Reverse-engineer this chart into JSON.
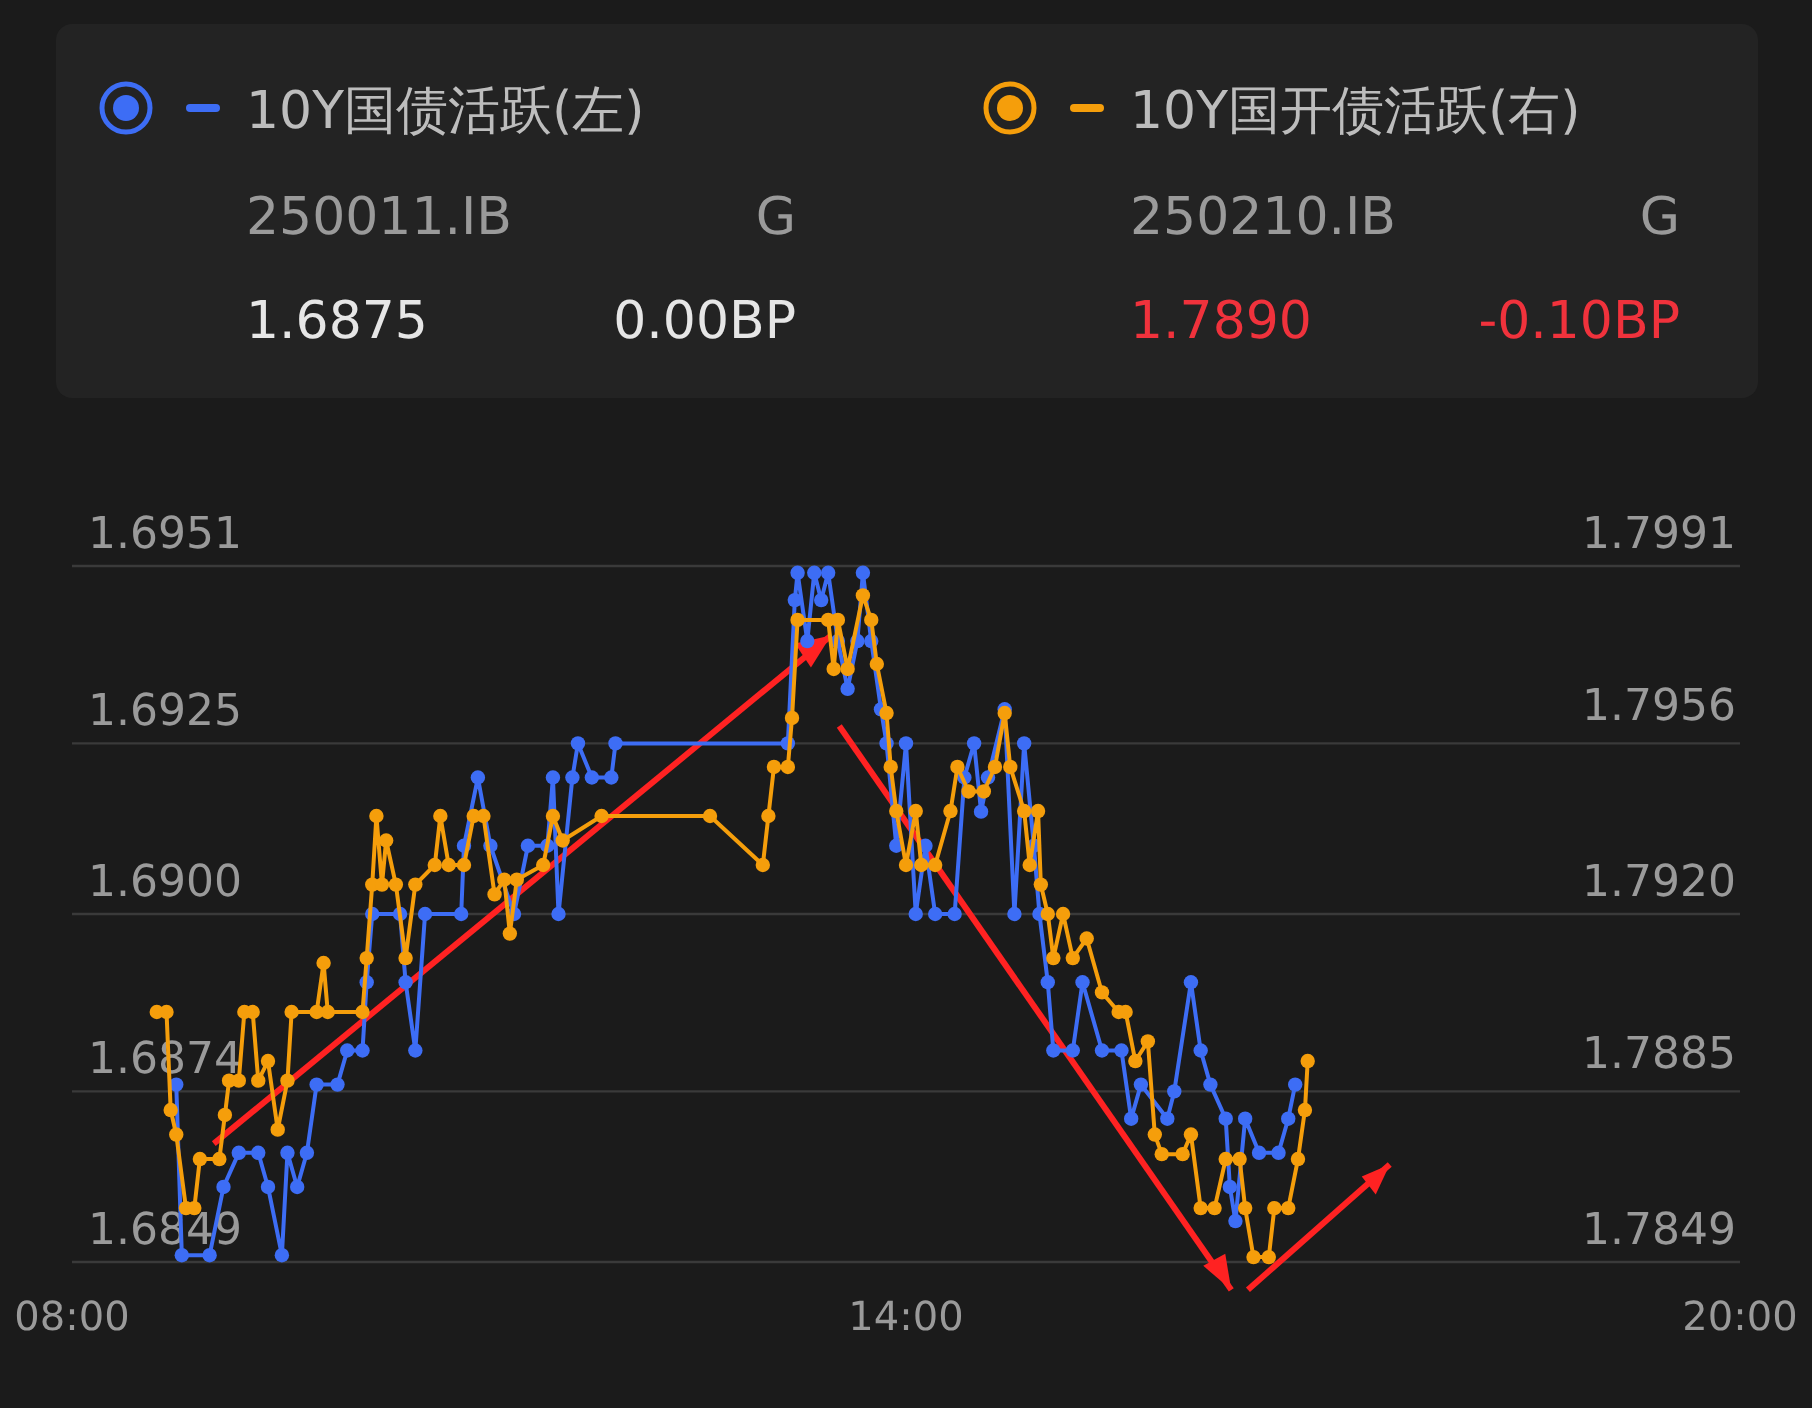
{
  "chart_data": {
    "type": "line",
    "legend": "top",
    "marker": "circle",
    "line_style": "solid",
    "grid": "y",
    "xlim": [
      8,
      20
    ],
    "xticks": [
      {
        "value": 8,
        "label": "08:00"
      },
      {
        "value": 14,
        "label": "14:00"
      },
      {
        "value": 20,
        "label": "20:00"
      }
    ],
    "ylim": [
      1.6849,
      1.6951
    ],
    "yticks": [
      1.6849,
      1.6874,
      {
        "value": 1.69,
        "label": "1.6900"
      },
      1.6925,
      1.6951
    ],
    "y2lim": [
      1.7849,
      1.7991
    ],
    "y2ticks": [
      1.7849,
      1.7885,
      {
        "value": 1.792,
        "label": "1.7920"
      },
      1.7956,
      1.7991
    ],
    "annotations": [
      "250011.IB",
      "G",
      "1.6875",
      "0.00BP",
      "250210.IB",
      "G",
      "1.7890",
      "-0.10BP"
    ],
    "series": [
      {
        "name": "10Y国债活跃(左)",
        "color": "#3d6df5",
        "x": [
          8.75,
          8.79,
          8.99,
          9.09,
          9.2,
          9.34,
          9.41,
          9.51,
          9.55,
          9.62,
          9.69,
          9.76,
          9.91,
          9.98,
          10.09,
          10.12,
          10.16,
          10.36,
          10.4,
          10.47,
          10.54,
          10.8,
          10.82,
          10.92,
          11.01,
          11.18,
          11.28,
          11.42,
          11.46,
          11.5,
          11.6,
          11.64,
          11.74,
          11.88,
          11.91,
          13.15,
          13.2,
          13.22,
          13.29,
          13.34,
          13.39,
          13.44,
          13.51,
          13.58,
          13.65,
          13.69,
          13.75,
          13.82,
          13.86,
          13.93,
          14,
          14.07,
          14.14,
          14.21,
          14.35,
          14.42,
          14.49,
          14.54,
          14.59,
          14.71,
          14.78,
          14.85,
          14.92,
          14.96,
          15.02,
          15.06,
          15.2,
          15.27,
          15.41,
          15.55,
          15.62,
          15.69,
          15.88,
          15.93,
          16.05,
          16.12,
          16.19,
          16.3,
          16.33,
          16.37,
          16.44,
          16.54,
          16.68,
          16.75,
          16.8
        ],
        "values": [
          1.6875,
          1.685,
          1.685,
          1.686,
          1.6865,
          1.6865,
          1.686,
          1.685,
          1.6865,
          1.686,
          1.6865,
          1.6875,
          1.6875,
          1.688,
          1.688,
          1.689,
          1.69,
          1.69,
          1.689,
          1.688,
          1.69,
          1.69,
          1.691,
          1.692,
          1.691,
          1.69,
          1.691,
          1.691,
          1.692,
          1.69,
          1.692,
          1.6925,
          1.692,
          1.692,
          1.6925,
          1.6925,
          1.6946,
          1.695,
          1.694,
          1.695,
          1.6946,
          1.695,
          1.694,
          1.6933,
          1.694,
          1.695,
          1.694,
          1.693,
          1.6925,
          1.691,
          1.6925,
          1.69,
          1.691,
          1.69,
          1.69,
          1.692,
          1.6925,
          1.6915,
          1.692,
          1.693,
          1.69,
          1.6925,
          1.691,
          1.69,
          1.689,
          1.688,
          1.688,
          1.689,
          1.688,
          1.688,
          1.687,
          1.6875,
          1.687,
          1.6874,
          1.689,
          1.688,
          1.6875,
          1.687,
          1.686,
          1.6855,
          1.687,
          1.6865,
          1.6865,
          1.687,
          1.6875
        ]
      },
      {
        "name": "10Y国开债活跃(右)",
        "color": "#f59e0b",
        "axis": "y2",
        "x": [
          8.61,
          8.68,
          8.71,
          8.75,
          8.82,
          8.88,
          8.92,
          9.06,
          9.1,
          9.13,
          9.2,
          9.24,
          9.3,
          9.34,
          9.41,
          9.48,
          9.55,
          9.58,
          9.76,
          9.81,
          9.84,
          10.09,
          10.12,
          10.16,
          10.19,
          10.23,
          10.26,
          10.33,
          10.4,
          10.47,
          10.61,
          10.65,
          10.71,
          10.82,
          10.89,
          10.96,
          11.04,
          11.11,
          11.15,
          11.2,
          11.39,
          11.46,
          11.53,
          11.81,
          12.59,
          12.97,
          13.01,
          13.05,
          13.15,
          13.18,
          13.22,
          13.44,
          13.48,
          13.51,
          13.58,
          13.69,
          13.75,
          13.79,
          13.86,
          13.89,
          13.93,
          14,
          14.07,
          14.11,
          14.21,
          14.32,
          14.37,
          14.45,
          14.56,
          14.64,
          14.71,
          14.75,
          14.85,
          14.89,
          14.95,
          14.97,
          15.02,
          15.06,
          15.13,
          15.2,
          15.3,
          15.41,
          15.53,
          15.58,
          15.65,
          15.74,
          15.79,
          15.84,
          15.99,
          16.05,
          16.12,
          16.22,
          16.3,
          16.4,
          16.44,
          16.5,
          16.61,
          16.65,
          16.75,
          16.82,
          16.87,
          16.89
        ],
        "values": [
          1.79,
          1.79,
          1.788,
          1.7875,
          1.786,
          1.786,
          1.787,
          1.787,
          1.7879,
          1.7886,
          1.7886,
          1.79,
          1.79,
          1.7886,
          1.789,
          1.7876,
          1.7886,
          1.79,
          1.79,
          1.791,
          1.79,
          1.79,
          1.7911,
          1.7926,
          1.794,
          1.7926,
          1.7935,
          1.7926,
          1.7911,
          1.7926,
          1.793,
          1.794,
          1.793,
          1.793,
          1.794,
          1.794,
          1.7924,
          1.7927,
          1.7916,
          1.7927,
          1.793,
          1.794,
          1.7935,
          1.794,
          1.794,
          1.793,
          1.794,
          1.795,
          1.795,
          1.796,
          1.798,
          1.798,
          1.797,
          1.798,
          1.797,
          1.7985,
          1.798,
          1.7971,
          1.7961,
          1.795,
          1.7941,
          1.793,
          1.7941,
          1.793,
          1.793,
          1.7941,
          1.795,
          1.7945,
          1.7945,
          1.795,
          1.7961,
          1.795,
          1.7941,
          1.793,
          1.7941,
          1.7926,
          1.792,
          1.7911,
          1.792,
          1.7911,
          1.7915,
          1.7904,
          1.79,
          1.79,
          1.789,
          1.7894,
          1.7875,
          1.7871,
          1.7871,
          1.7875,
          1.786,
          1.786,
          1.787,
          1.787,
          1.786,
          1.785,
          1.785,
          1.786,
          1.786,
          1.787,
          1.788,
          1.789
        ]
      }
    ]
  }
}
